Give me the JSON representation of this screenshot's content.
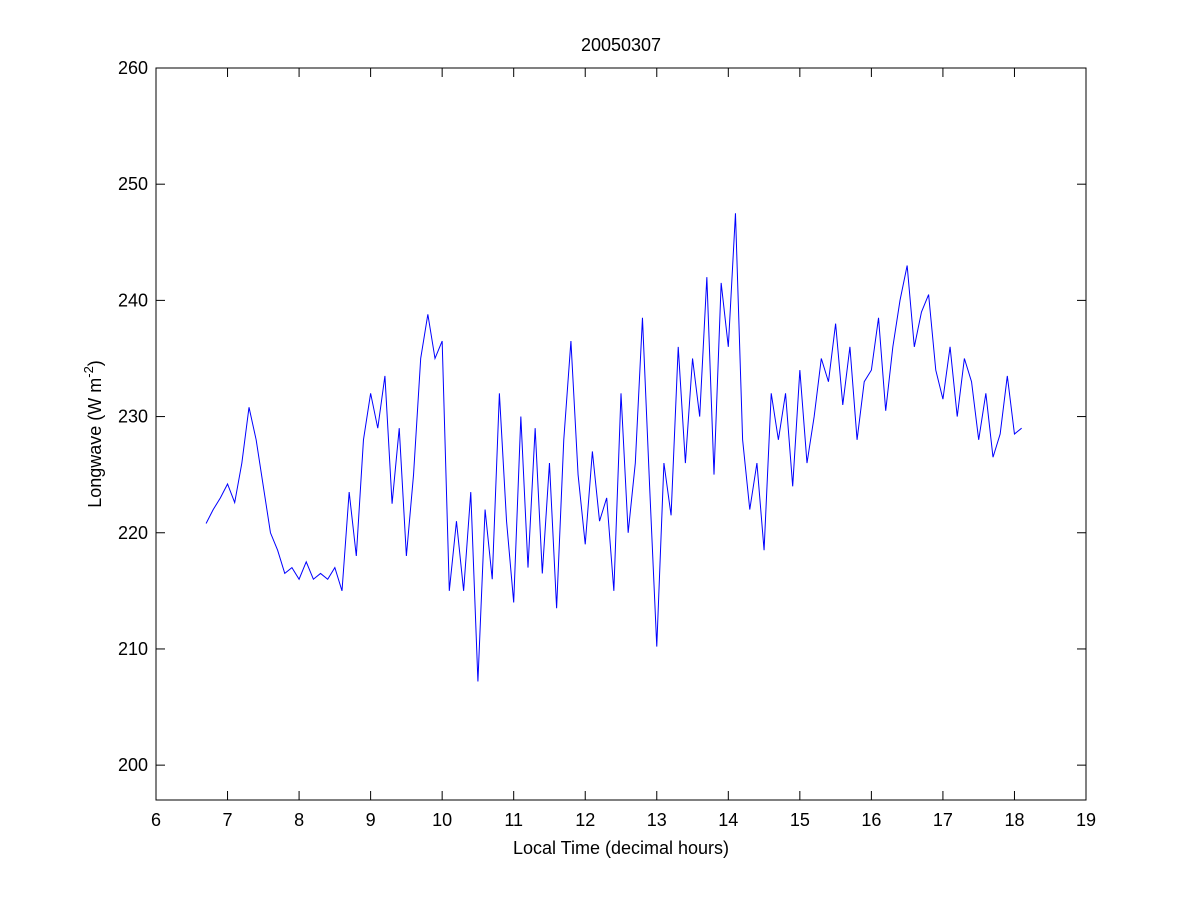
{
  "chart_data": {
    "type": "line",
    "title": "20050307",
    "xlabel": "Local Time (decimal hours)",
    "ylabel": {
      "text": "Longwave (W m",
      "sup": "-2",
      "end": ")"
    },
    "xlim": [
      6,
      19
    ],
    "xticks": [
      6,
      7,
      8,
      9,
      10,
      11,
      12,
      13,
      14,
      15,
      16,
      17,
      18,
      19
    ],
    "ylim": [
      197,
      260
    ],
    "yticks": [
      200,
      210,
      220,
      230,
      240,
      250,
      260
    ],
    "x": [
      6.7,
      6.8,
      6.9,
      7.0,
      7.1,
      7.2,
      7.3,
      7.4,
      7.5,
      7.6,
      7.7,
      7.8,
      7.9,
      8.0,
      8.1,
      8.2,
      8.3,
      8.4,
      8.5,
      8.6,
      8.7,
      8.8,
      8.9,
      9.0,
      9.1,
      9.2,
      9.3,
      9.4,
      9.5,
      9.6,
      9.7,
      9.8,
      9.9,
      10.0,
      10.1,
      10.2,
      10.3,
      10.4,
      10.5,
      10.6,
      10.7,
      10.8,
      10.9,
      11.0,
      11.1,
      11.2,
      11.3,
      11.4,
      11.5,
      11.6,
      11.7,
      11.8,
      11.9,
      12.0,
      12.1,
      12.2,
      12.3,
      12.4,
      12.5,
      12.6,
      12.7,
      12.8,
      12.9,
      13.0,
      13.1,
      13.2,
      13.3,
      13.4,
      13.5,
      13.6,
      13.7,
      13.8,
      13.9,
      14.0,
      14.1,
      14.2,
      14.3,
      14.4,
      14.5,
      14.6,
      14.7,
      14.8,
      14.9,
      15.0,
      15.1,
      15.2,
      15.3,
      15.4,
      15.5,
      15.6,
      15.7,
      15.8,
      15.9,
      16.0,
      16.1,
      16.2,
      16.3,
      16.4,
      16.5,
      16.6,
      16.7,
      16.8,
      16.9,
      17.0,
      17.1,
      17.2,
      17.3,
      17.4,
      17.5,
      17.6,
      17.7,
      17.8,
      17.9,
      18.0,
      18.1
    ],
    "series": [
      {
        "name": "Longwave",
        "color": "#0000ff",
        "values": [
          220.8,
          222,
          223,
          224.2,
          222.6,
          226,
          230.8,
          228,
          224,
          220,
          218.5,
          216.5,
          217,
          216,
          217.5,
          216,
          216.5,
          216,
          217,
          215,
          223.5,
          218,
          228,
          232,
          229,
          233.5,
          222.5,
          229,
          218,
          225,
          235,
          238.8,
          235,
          236.5,
          215,
          221,
          215,
          223.5,
          207.2,
          222,
          216,
          232,
          221,
          214,
          230,
          217,
          229,
          216.5,
          226,
          213.5,
          228,
          236.5,
          225,
          219,
          227,
          221,
          223,
          215,
          232,
          220,
          226,
          238.5,
          224,
          210.2,
          226,
          221.5,
          236,
          226,
          235,
          230,
          242,
          225,
          241.5,
          236,
          247.5,
          228,
          222,
          226,
          218.5,
          232,
          228,
          232,
          224,
          234,
          226,
          230,
          235,
          233,
          238,
          231,
          236,
          228,
          233,
          234,
          238.5,
          230.5,
          236,
          240,
          243,
          236,
          239,
          240.5,
          234,
          231.5,
          236,
          230,
          235,
          233,
          228,
          232,
          226.5,
          228.5,
          233.5,
          228.5,
          229
        ]
      }
    ]
  }
}
